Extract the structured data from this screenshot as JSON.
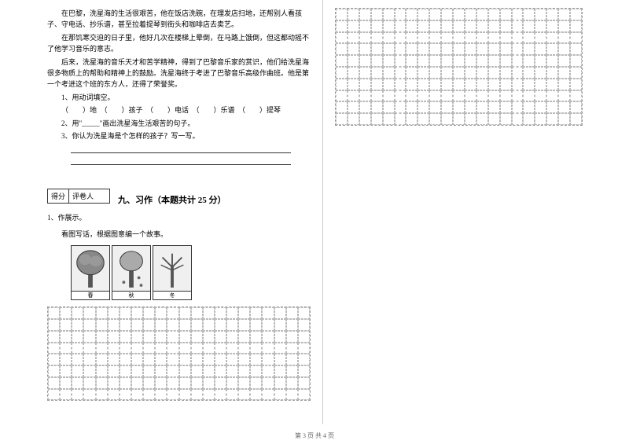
{
  "passage": {
    "p1": "在巴黎，洗星海的生活很艰苦，他在饭店洗碗，在理发店扫地，还帮别人看孩子、守电话、抄乐谱，甚至拉着提琴到街头和咖啡店去卖艺。",
    "p2": "在那饥寒交迫的日子里，他好几次在楼梯上晕倒，在马路上饿倒，但这都动摇不了他学习音乐的意志。",
    "p3": "后来，洗星海的音乐天才和苦学精神，得到了巴黎音乐家的赏识，他们给洗星海很多物质上的帮助和精神上的鼓励。洗星海终于考进了巴黎音乐高级作曲班。他是第一个考进这个班的东方人，还得了荣誉奖。"
  },
  "questions": {
    "q1_label": "1、用动词填空。",
    "q1_blanks": "（　　）地　（　　）孩子　（　　）电话　（　　）乐谱　（　　）提琴",
    "q2": "2、用\"_____\"画出洗星海生活艰苦的句子。",
    "q3": "3、你认为洗星海是个怎样的孩子？写一写。"
  },
  "scorebox": {
    "col1": "得分",
    "col2": "评卷人"
  },
  "section9": {
    "title": "九、习作（本题共计 25 分）",
    "sub1": "1、作展示。",
    "sub2": "看图写话，根据图意编一个故事。"
  },
  "images": {
    "captions": [
      "春",
      "秋",
      "冬"
    ]
  },
  "footer": "第 3 页 共 4 页",
  "grid": {
    "left_cells": 176,
    "right_top_cells": 210
  },
  "style": {
    "body_font_size": 9,
    "title_font_size": 11,
    "grid_border_color": "#bbb",
    "text_color": "#000000",
    "bg_color": "#ffffff"
  }
}
